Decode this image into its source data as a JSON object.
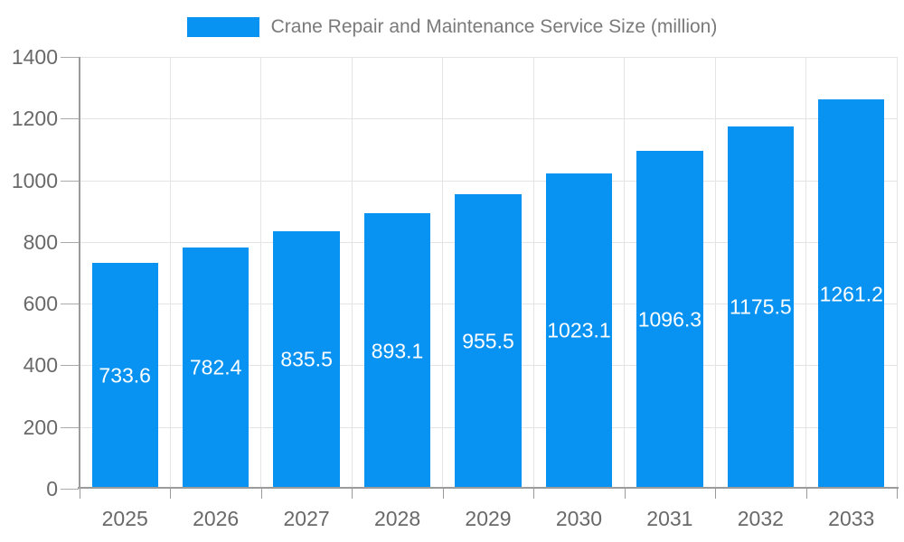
{
  "chart_data": {
    "type": "bar",
    "title": "Crane Repair and Maintenance Service Size (million)",
    "categories": [
      "2025",
      "2026",
      "2027",
      "2028",
      "2029",
      "2030",
      "2031",
      "2032",
      "2033"
    ],
    "values": [
      733.6,
      782.4,
      835.5,
      893.1,
      955.5,
      1023.1,
      1096.3,
      1175.5,
      1261.2
    ],
    "xlabel": "",
    "ylabel": "",
    "ylim": [
      0,
      1400
    ],
    "ytick_step": 200,
    "yticks": [
      0,
      200,
      400,
      600,
      800,
      1000,
      1200,
      1400
    ],
    "grid": true,
    "legend": {
      "position": "top",
      "label": "Crane Repair and Maintenance Service Size (million)"
    },
    "colors": {
      "bar": "#0892f2",
      "grid": "#e4e4e4",
      "axis": "#9b9b9b",
      "tick": "#aaaaaa",
      "tick_label": "#696969",
      "title": "#7a7a7a",
      "data_label": "#ffffff",
      "background": "#ffffff"
    }
  }
}
